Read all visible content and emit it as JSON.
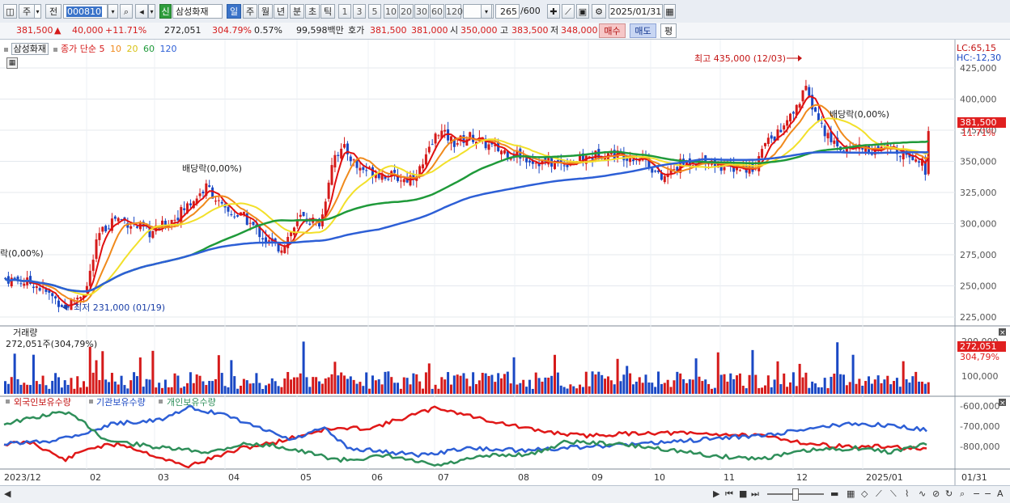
{
  "toolbar": {
    "period_label": "주",
    "prev_label": "전",
    "code_value": "000810",
    "credit_tag": "신",
    "stock_name": "삼성화재",
    "timeframes": [
      "일",
      "주",
      "월",
      "년",
      "분",
      "초",
      "틱"
    ],
    "active_timeframe": "일",
    "intervals": [
      "1",
      "3",
      "5",
      "10",
      "20",
      "30",
      "60",
      "120"
    ],
    "count_value": "265",
    "count_total": "/600",
    "date_value": "2025/01/31"
  },
  "quote": {
    "price": "381,500",
    "arrow": "▲",
    "change": "40,000",
    "change_pct": "+11.71%",
    "volume": "272,051",
    "volume_ratio": "304.79%",
    "turnover": "0.57%",
    "amount": "99,598백만",
    "ask_label": "호가",
    "ask1": "381,500",
    "ask2": "381,000",
    "open_label": "시",
    "open": "350,000",
    "high_label": "고",
    "high": "383,500",
    "low_label": "저",
    "low": "348,000",
    "buy_label": "매수",
    "sell_label": "매도",
    "eval_label": "평"
  },
  "price_panel": {
    "name_tag": "삼성화재",
    "ma_label": "종가 단순",
    "ma_periods": [
      "5",
      "10",
      "20",
      "60",
      "120"
    ],
    "lc_label": "LC:65,15",
    "hc_label": "HC:-12,30",
    "y_ticks": [
      "425,000",
      "400,000",
      "375,000",
      "350,000",
      "325,000",
      "300,000",
      "275,000",
      "250,000",
      "225,000"
    ],
    "current_price_tag": "381,500",
    "current_pct_tag": "11.71%",
    "high_annotation": "최고 435,000 (12/03)",
    "low_annotation": "최저 231,000 (01/19)",
    "div_annotation_1": "배당락(0,00%)",
    "div_annotation_2": "배당락(0,00%)",
    "div_annotation_left": "락(0,00%)"
  },
  "volume_panel": {
    "title": "거래량",
    "value_label": "272,051주(304,79%)",
    "y_ticks": [
      "200,000",
      "100,000"
    ],
    "current_tag": "272,051",
    "ratio_tag": "304,79%"
  },
  "holdings_panel": {
    "series_labels": [
      "외국인보유수량",
      "기관보유수량",
      "개인보유수량"
    ],
    "y_ticks": [
      "-600,000",
      "-700,000",
      "-800,000"
    ]
  },
  "x_axis": {
    "labels": [
      "2023/12",
      "02",
      "03",
      "04",
      "05",
      "06",
      "07",
      "08",
      "09",
      "10",
      "11",
      "12",
      "2025/01",
      "01/31"
    ]
  },
  "colors": {
    "up": "#d51a1a",
    "down": "#1a48c4",
    "ma5": "#e01010",
    "ma10": "#f08a1c",
    "ma20": "#f2e02a",
    "ma60": "#1f9a3a",
    "ma120": "#2d5fd6",
    "foreign": "#e01818",
    "institution": "#2d5fd6",
    "individual": "#2f8f5a"
  }
}
